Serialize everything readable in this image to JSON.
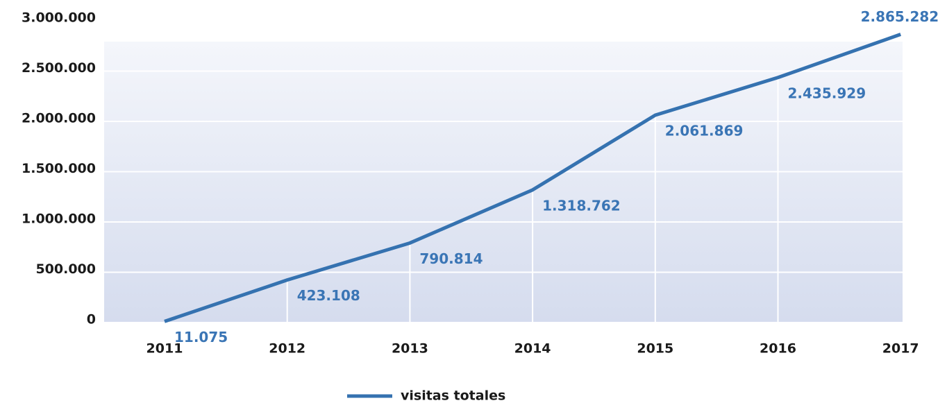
{
  "chart_data": {
    "type": "line",
    "categories": [
      "2011",
      "2012",
      "2013",
      "2014",
      "2015",
      "2016",
      "2017"
    ],
    "series": [
      {
        "name": "visitas totales",
        "color": "#3572b0",
        "values": [
          11075,
          423108,
          790814,
          1318762,
          2061869,
          2435929,
          2865282
        ],
        "value_labels": [
          "11.075",
          "423.108",
          "790.814",
          "1.318.762",
          "2.061.869",
          "2.435.929",
          "2.865.282"
        ]
      }
    ],
    "ylim": [
      0,
      3000000
    ],
    "yticks": [
      0,
      {
        "value": 500000,
        "label": "500.000"
      },
      {
        "value": 1000000,
        "label": "1.000.000"
      },
      {
        "value": 1500000,
        "label": "1.500.000"
      },
      {
        "value": 2000000,
        "label": "2.000.000"
      },
      {
        "value": 2500000,
        "label": "2.500.000"
      },
      {
        "value": 3000000,
        "label": "3.000.000"
      }
    ],
    "grid": true,
    "legend": "bottom"
  }
}
